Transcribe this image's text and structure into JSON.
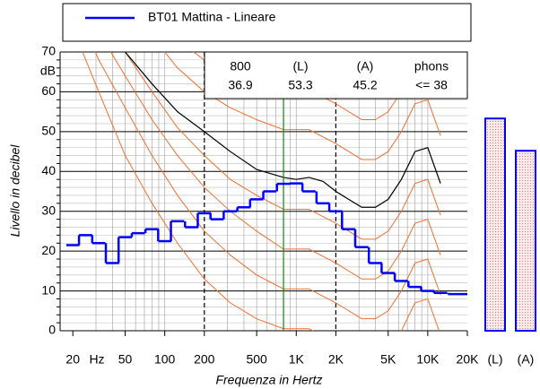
{
  "chart_data": {
    "type": "line",
    "x_label": "Frequenza in Hertz",
    "y_label": "Livello in decibel",
    "x_unit": "Hz",
    "y_unit": "dB",
    "xscale": "log",
    "xlim": [
      16,
      20000
    ],
    "ylim": [
      0,
      70
    ],
    "xticks": [
      {
        "value": 20,
        "label": "20"
      },
      {
        "value": 50,
        "label": "50"
      },
      {
        "value": 100,
        "label": "100"
      },
      {
        "value": 200,
        "label": "200"
      },
      {
        "value": 500,
        "label": "500"
      },
      {
        "value": 1000,
        "label": "1K"
      },
      {
        "value": 2000,
        "label": "2K"
      },
      {
        "value": 5000,
        "label": "5K"
      },
      {
        "value": 10000,
        "label": "10K"
      },
      {
        "value": 20000,
        "label": "20K"
      }
    ],
    "xmajor": [
      200,
      2000
    ],
    "xminor": [
      30,
      40,
      50,
      60,
      70,
      80,
      90,
      100,
      300,
      400,
      500,
      600,
      700,
      800,
      900,
      1000,
      3000,
      4000,
      5000,
      6000,
      7000,
      8000,
      9000,
      10000
    ],
    "yticks": [
      0,
      10,
      20,
      30,
      40,
      50,
      60,
      70
    ],
    "yminor": [
      2,
      4,
      6,
      8,
      12,
      14,
      16,
      18,
      22,
      24,
      26,
      28,
      32,
      34,
      36,
      38,
      42,
      44,
      46,
      48,
      52,
      54,
      56,
      58,
      62,
      64,
      66,
      68
    ],
    "cursor": {
      "frequency": 800,
      "color": "#0a8a0a"
    },
    "readout": {
      "phons_header": "phons",
      "phons": "<= 38"
    },
    "series": [
      {
        "name": "BT01 Mattina - Lineare",
        "color": "#0000ff",
        "x": [
          20,
          25,
          31.5,
          40,
          50,
          63,
          80,
          100,
          125,
          160,
          200,
          250,
          315,
          400,
          500,
          630,
          800,
          1000,
          1250,
          1600,
          2000,
          2500,
          3150,
          4000,
          5000,
          6300,
          8000,
          10000,
          12500,
          16000,
          20000
        ],
        "values": [
          21.5,
          24,
          22,
          17,
          23.5,
          24.5,
          25.5,
          22.5,
          27.5,
          26,
          29.5,
          28,
          30,
          31,
          33,
          35,
          36.9,
          37,
          35,
          32,
          30,
          25.5,
          21,
          17,
          14.5,
          12.5,
          11,
          10,
          9.5,
          9.2,
          9.2
        ]
      }
    ],
    "threshold": {
      "color": "#000000",
      "x": [
        50,
        80,
        125,
        200,
        315,
        500,
        800,
        1000,
        1250,
        1600,
        2000,
        2500,
        3150,
        4000,
        5000,
        6300,
        8000,
        10000,
        12500
      ],
      "values": [
        70,
        62,
        55,
        50,
        45,
        40.5,
        38.5,
        38,
        38.5,
        37.5,
        35,
        33,
        31,
        31,
        33,
        38,
        45,
        46,
        37
      ]
    },
    "contour_color": "#f07030",
    "contour_x": [
      20,
      31.5,
      50,
      80,
      125,
      200,
      315,
      500,
      800,
      1250,
      2000,
      3150,
      4000,
      5000,
      6300,
      8000,
      10000,
      12500
    ],
    "contours": [
      [
        76,
        60,
        44,
        32,
        22,
        13,
        7,
        3,
        0.5,
        0.5,
        -3,
        -7,
        -7,
        -5,
        0,
        7,
        8,
        -1
      ],
      [
        83,
        68,
        56,
        44,
        34,
        25,
        19,
        14,
        10.5,
        10.5,
        7,
        3,
        3,
        5,
        10,
        17,
        18,
        9
      ],
      [
        89,
        75,
        64,
        53,
        44,
        36,
        30,
        25,
        20.5,
        20.5,
        17,
        13,
        13,
        15,
        20,
        27,
        28,
        19
      ],
      [
        94,
        81,
        70,
        60,
        51,
        44,
        38,
        34,
        30.5,
        30.5,
        27,
        23,
        23,
        25,
        30,
        37,
        38,
        29
      ],
      [
        104,
        91,
        82,
        74,
        66,
        60,
        56,
        53,
        50.5,
        50.5,
        47,
        43,
        43,
        45,
        50,
        57,
        58,
        49
      ],
      [
        109,
        96,
        88,
        80,
        73,
        68,
        65,
        63,
        60.5,
        60.5,
        57,
        53,
        53,
        55,
        60,
        67,
        68,
        59
      ],
      [
        113,
        101,
        93,
        87,
        81,
        77,
        74,
        73,
        70.5,
        70.5,
        67,
        63,
        63,
        65,
        70,
        77,
        78,
        69
      ],
      [
        118,
        106,
        99,
        93,
        88,
        85,
        83,
        82,
        80.5,
        80.5,
        77,
        73,
        73,
        75,
        80,
        87,
        88,
        79
      ]
    ],
    "overall": {
      "categories": [
        "(L)",
        "(A)"
      ],
      "values": [
        53.3,
        45.2
      ],
      "color": "#0000ff"
    }
  }
}
